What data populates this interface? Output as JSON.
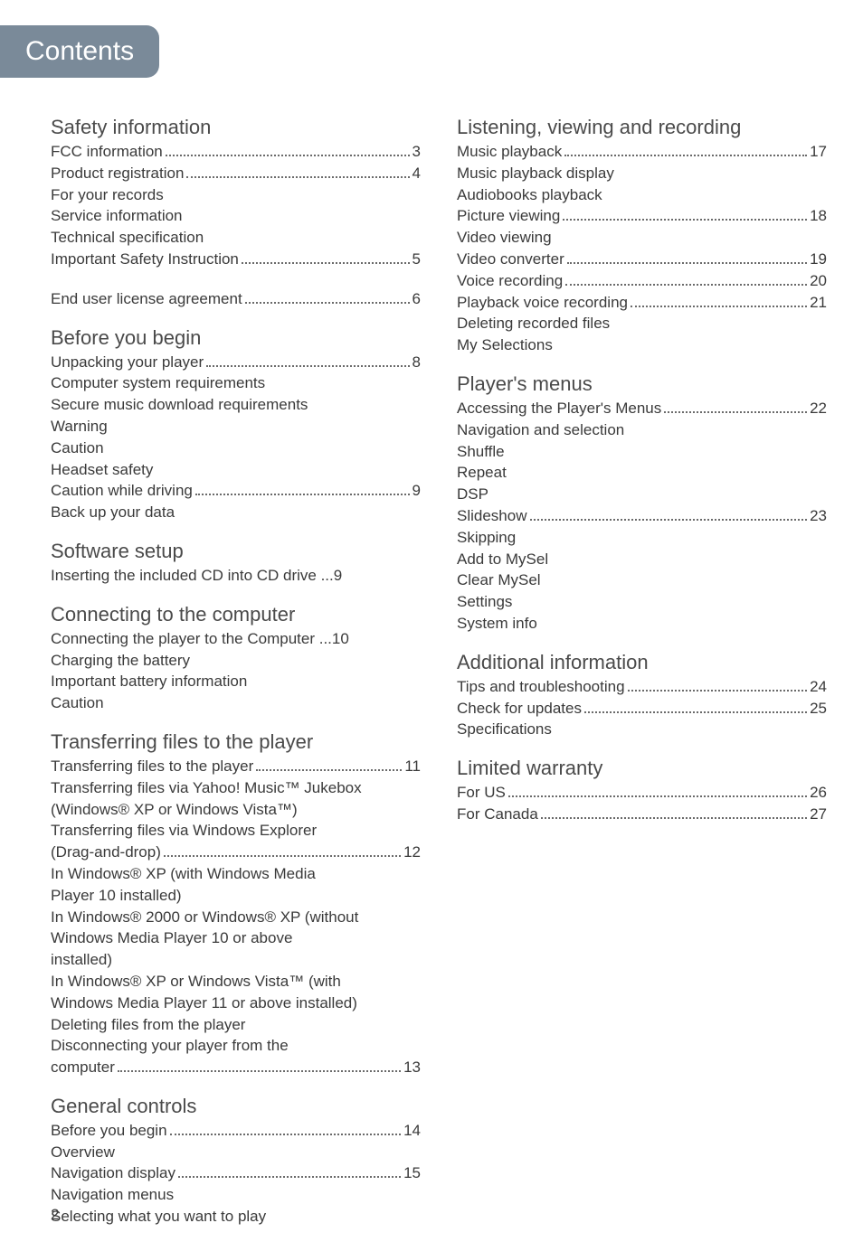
{
  "header": {
    "title": "Contents"
  },
  "pageNumber": "2",
  "left": [
    {
      "type": "heading",
      "text": "Safety information"
    },
    {
      "type": "dotted",
      "label": "FCC information",
      "page": "3"
    },
    {
      "type": "dotted",
      "label": "Product registration",
      "page": "4"
    },
    {
      "type": "plain",
      "label": "For your records"
    },
    {
      "type": "plain",
      "label": "Service information"
    },
    {
      "type": "plain",
      "label": "Technical specification"
    },
    {
      "type": "dotted",
      "label": "Important Safety Instruction",
      "page": "5"
    },
    {
      "type": "spacer"
    },
    {
      "type": "dotted",
      "label": "End user license agreement",
      "page": "6"
    },
    {
      "type": "heading",
      "text": "Before you begin"
    },
    {
      "type": "dotted",
      "label": "Unpacking your player",
      "page": "8"
    },
    {
      "type": "plain",
      "label": "Computer system requirements"
    },
    {
      "type": "plain",
      "label": "Secure music download requirements"
    },
    {
      "type": "plain",
      "label": "Warning"
    },
    {
      "type": "plain",
      "label": "Caution"
    },
    {
      "type": "plain",
      "label": "Headset safety"
    },
    {
      "type": "dotted",
      "label": "Caution while driving",
      "page": "9"
    },
    {
      "type": "plain",
      "label": "Back up your data"
    },
    {
      "type": "heading",
      "text": "Software setup"
    },
    {
      "type": "plain",
      "label": "Inserting the included CD into CD drive ...9"
    },
    {
      "type": "heading",
      "text": "Connecting to the computer"
    },
    {
      "type": "plain",
      "label": "Connecting the player to the Computer ...10",
      "noclip": true
    },
    {
      "type": "plain",
      "label": "Charging the battery"
    },
    {
      "type": "plain",
      "label": "Important battery information"
    },
    {
      "type": "plain",
      "label": "Caution"
    },
    {
      "type": "heading",
      "text": "Transferring files to the player"
    },
    {
      "type": "dotted",
      "label": "Transferring files to the player",
      "page": "11"
    },
    {
      "type": "plain",
      "label": "Transferring files via Yahoo! Music™ Jukebox",
      "noclip": true
    },
    {
      "type": "plain",
      "label": "(Windows® XP or Windows Vista™)"
    },
    {
      "type": "plain",
      "label": "Transferring files via Windows Explorer"
    },
    {
      "type": "dotted",
      "label": "(Drag-and-drop) ",
      "page": "12"
    },
    {
      "type": "plain",
      "label": "In Windows® XP (with Windows Media"
    },
    {
      "type": "plain",
      "label": "Player 10 installed)"
    },
    {
      "type": "plain",
      "label": "In Windows® 2000 or Windows® XP (without",
      "noclip": true
    },
    {
      "type": "plain",
      "label": "Windows Media Player 10 or above"
    },
    {
      "type": "plain",
      "label": "installed)"
    },
    {
      "type": "plain",
      "label": "In Windows® XP or Windows Vista™ (with"
    },
    {
      "type": "plain",
      "label": "Windows Media Player 11 or above installed)",
      "noclip": true
    },
    {
      "type": "plain",
      "label": "Deleting files from the player"
    },
    {
      "type": "plain",
      "label": "Disconnecting your player from the"
    },
    {
      "type": "dotted",
      "label": "computer ",
      "page": "13"
    },
    {
      "type": "heading",
      "text": "General controls"
    },
    {
      "type": "dotted",
      "label": "Before you begin",
      "page": "14"
    },
    {
      "type": "plain",
      "label": "Overview"
    },
    {
      "type": "dotted",
      "label": "Navigation display",
      "page": "15"
    },
    {
      "type": "plain",
      "label": "Navigation menus"
    },
    {
      "type": "plain",
      "label": "Selecting what you want to play"
    }
  ],
  "right": [
    {
      "type": "heading",
      "text": "Listening, viewing and recording"
    },
    {
      "type": "dotted",
      "label": "Music playback",
      "page": "17"
    },
    {
      "type": "plain",
      "label": "Music playback display"
    },
    {
      "type": "plain",
      "label": "Audiobooks playback"
    },
    {
      "type": "dotted",
      "label": "Picture viewing",
      "page": "18"
    },
    {
      "type": "plain",
      "label": "Video viewing"
    },
    {
      "type": "dotted",
      "label": "Video converter",
      "page": "19"
    },
    {
      "type": "dotted",
      "label": "Voice recording",
      "page": "20"
    },
    {
      "type": "dotted",
      "label": "Playback voice recording",
      "page": "21"
    },
    {
      "type": "plain",
      "label": "Deleting recorded files"
    },
    {
      "type": "plain",
      "label": "My Selections"
    },
    {
      "type": "heading",
      "text": "Player's menus"
    },
    {
      "type": "dotted",
      "label": "Accessing the Player's Menus",
      "page": "22"
    },
    {
      "type": "plain",
      "label": "Navigation and selection"
    },
    {
      "type": "plain",
      "label": "Shuffle"
    },
    {
      "type": "plain",
      "label": "Repeat"
    },
    {
      "type": "plain",
      "label": "DSP"
    },
    {
      "type": "dotted",
      "label": "Slideshow",
      "page": "23"
    },
    {
      "type": "plain",
      "label": "Skipping"
    },
    {
      "type": "plain",
      "label": "Add to MySel"
    },
    {
      "type": "plain",
      "label": "Clear MySel"
    },
    {
      "type": "plain",
      "label": "Settings"
    },
    {
      "type": "plain",
      "label": "System info"
    },
    {
      "type": "heading",
      "text": "Additional information"
    },
    {
      "type": "dotted",
      "label": "Tips and troubleshooting",
      "page": "24"
    },
    {
      "type": "dotted",
      "label": "Check for updates",
      "page": "25"
    },
    {
      "type": "plain",
      "label": "Specifications"
    },
    {
      "type": "heading",
      "text": "Limited warranty"
    },
    {
      "type": "dotted",
      "label": "For US",
      "page": "26"
    },
    {
      "type": "dotted",
      "label": "For Canada",
      "page": "27"
    }
  ]
}
